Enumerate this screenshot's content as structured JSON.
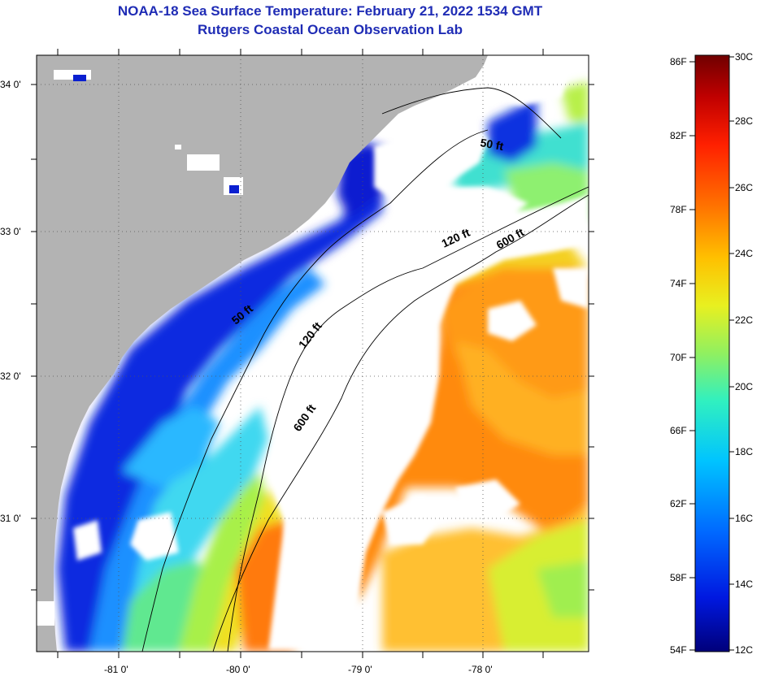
{
  "header": {
    "title_line1": "NOAA-18 Sea Surface Temperature:  February 21, 2022 1534 GMT",
    "title_line2": "Rutgers Coastal Ocean Observation Lab"
  },
  "map": {
    "lat_labels": [
      "34 0'",
      "33 0'",
      "32 0'",
      "31 0'"
    ],
    "lon_labels": [
      "-81 0'",
      "-80 0'",
      "-79 0'",
      "-78 0'"
    ],
    "contour_labels": [
      "50 ft",
      "120 ft",
      "600 ft",
      "50 ft",
      "120 ft",
      "600 ft"
    ]
  },
  "colorbar": {
    "fahrenheit_labels": [
      "86F",
      "82F",
      "78F",
      "74F",
      "70F",
      "66F",
      "62F",
      "58F",
      "54F"
    ],
    "celsius_labels": [
      "30C",
      "28C",
      "26C",
      "24C",
      "22C",
      "20C",
      "18C",
      "16C",
      "14C",
      "12C"
    ],
    "colors": [
      "#00007a",
      "#0018e0",
      "#0068ff",
      "#00c4ff",
      "#30f0c0",
      "#90f060",
      "#e8f020",
      "#ffc000",
      "#ff7000",
      "#ff2000",
      "#c00000",
      "#700000"
    ]
  },
  "colors": {
    "title": "#1f2cb5",
    "land": "#b3b3b3",
    "cloud": "#ffffff"
  }
}
